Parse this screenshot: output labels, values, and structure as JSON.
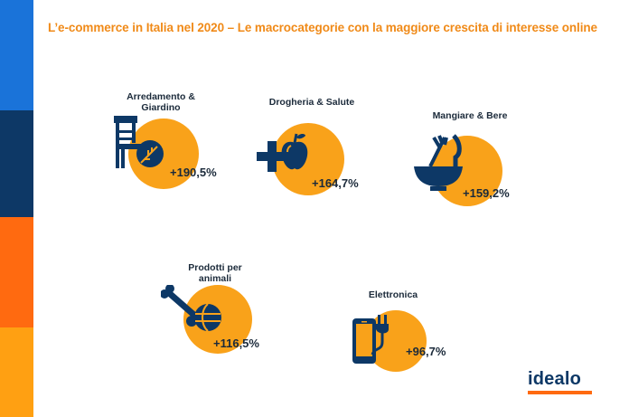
{
  "title": "L’e-commerce in Italia nel 2020 –  Le macrocategorie con la maggiore crescita di interesse online",
  "colors": {
    "circle": "#f9a21a",
    "icon": "#0d3866",
    "title": "#f08a18",
    "sidebar": [
      "#1a73d9",
      "#0d3866",
      "#ff6a10",
      "#ffa012"
    ]
  },
  "categories": [
    {
      "label_line1": "Arredamento &",
      "label_line2": "Giardino",
      "growth": "+190,5%",
      "icon": "chair-leaf-icon"
    },
    {
      "label_line1": "Drogheria & Salute",
      "label_line2": "",
      "growth": "+164,7%",
      "icon": "cross-apple-icon"
    },
    {
      "label_line1": "Mangiare & Bere",
      "label_line2": "",
      "growth": "+159,2%",
      "icon": "bowl-cutlery-icon"
    },
    {
      "label_line1": "Prodotti per",
      "label_line2": "animali",
      "growth": "+116,5%",
      "icon": "bone-ball-icon"
    },
    {
      "label_line1": "Elettronica",
      "label_line2": "",
      "growth": "+96,7%",
      "icon": "phone-plug-icon"
    }
  ],
  "logo": {
    "text": "idealo"
  }
}
